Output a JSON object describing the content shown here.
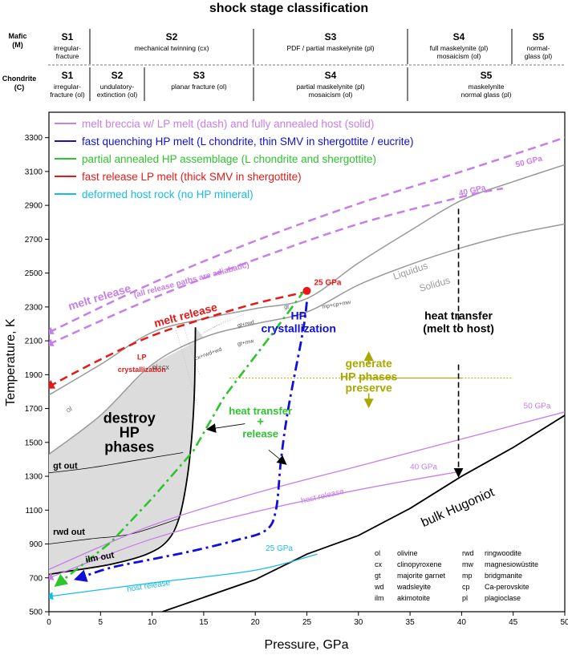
{
  "title": "shock stage classification",
  "stages": {
    "mafic": {
      "row_label_1": "Mafic",
      "row_label_2": "(M)",
      "items": [
        {
          "stage": "S1",
          "desc": [
            "irregular-",
            "fracture"
          ]
        },
        {
          "stage": "S2",
          "desc": [
            "mechanical twinning (cx)"
          ]
        },
        {
          "stage": "S3",
          "desc": [
            "PDF / partial maskelynite (pl)"
          ]
        },
        {
          "stage": "S4",
          "desc": [
            "full maskelynite (pl)",
            "mosaicism (ol)"
          ]
        },
        {
          "stage": "S5",
          "desc": [
            "normal-",
            "glass (pl)"
          ]
        }
      ]
    },
    "chondrite": {
      "row_label_1": "Chondrite",
      "row_label_2": "(C)",
      "items": [
        {
          "stage": "S1",
          "desc": [
            "irregular-",
            "fracture (ol)"
          ]
        },
        {
          "stage": "S2",
          "desc": [
            "undulatory-",
            "extinction (ol)"
          ]
        },
        {
          "stage": "S3",
          "desc": [
            "planar fracture (ol)"
          ]
        },
        {
          "stage": "S4",
          "desc": [
            "partial maskelynite (pl)",
            "mosaicism (ol)"
          ]
        },
        {
          "stage": "S5",
          "desc": [
            "maskelynite",
            "normal glass (pl)"
          ]
        }
      ]
    }
  },
  "chart_data": {
    "type": "line",
    "xlabel": "Pressure, GPa",
    "ylabel": "Temperature, K",
    "xlim": [
      0,
      50
    ],
    "ylim": [
      500,
      3450
    ],
    "x_ticks": [
      0,
      5,
      10,
      15,
      20,
      25,
      30,
      35,
      40,
      45,
      50
    ],
    "y_ticks": [
      500,
      700,
      900,
      1100,
      1300,
      1500,
      1700,
      1900,
      2100,
      2300,
      2500,
      2700,
      2900,
      3100,
      3300
    ],
    "legend": [
      {
        "label": "melt breccia w/ LP melt (dash) and fully annealed host (solid)",
        "color": "#c77ee8"
      },
      {
        "label": "fast quenching HP melt (L chondrite, thin SMV in shergottite / eucrite)",
        "color": "#1010d8"
      },
      {
        "label": "partial annealed HP assemblage (L chondrite and shergottite)",
        "color": "#2ec42e"
      },
      {
        "label": "fast release LP melt (thick SMV in shergottite)",
        "color": "#e81818"
      },
      {
        "label": "deformed host rock (no HP mineral)",
        "color": "#17bde8"
      }
    ],
    "colors": {
      "melt": "#c77ee8",
      "hp_quench": "#1010d8",
      "annealed": "#2ec42e",
      "lp_melt": "#e81818",
      "host": "#17bde8",
      "phase": "#a8a800",
      "liquidus": "#9a9a9a",
      "region": "#dcdcdc"
    },
    "curves": {
      "liquidus": [
        [
          0,
          1780
        ],
        [
          5,
          1960
        ],
        [
          10,
          2150
        ],
        [
          15,
          2230
        ],
        [
          20,
          2290
        ],
        [
          25,
          2350
        ],
        [
          30,
          2560
        ],
        [
          35,
          2750
        ],
        [
          40,
          2930
        ],
        [
          45,
          3040
        ],
        [
          50,
          3140
        ]
      ],
      "solidus": [
        [
          0,
          1430
        ],
        [
          5,
          1660
        ],
        [
          10,
          1960
        ],
        [
          15,
          2120
        ],
        [
          20,
          2200
        ],
        [
          25,
          2270
        ],
        [
          30,
          2430
        ],
        [
          35,
          2550
        ],
        [
          40,
          2650
        ],
        [
          45,
          2730
        ],
        [
          50,
          2790
        ]
      ],
      "bulk_hugoniot": [
        [
          11,
          500
        ],
        [
          20,
          690
        ],
        [
          25,
          840
        ],
        [
          30,
          950
        ],
        [
          35,
          1110
        ],
        [
          40,
          1300
        ],
        [
          45,
          1470
        ],
        [
          50,
          1660
        ]
      ],
      "destroy_boundary": [
        [
          14.2,
          2180
        ],
        [
          14.1,
          1800
        ],
        [
          13.8,
          1500
        ],
        [
          13.3,
          1250
        ],
        [
          12.6,
          1050
        ],
        [
          11.5,
          920
        ],
        [
          9.5,
          840
        ],
        [
          6,
          780
        ],
        [
          2,
          740
        ],
        [
          0,
          720
        ]
      ],
      "gt_out": [
        [
          0,
          1320
        ],
        [
          4,
          1350
        ],
        [
          8,
          1390
        ],
        [
          13,
          1440
        ]
      ],
      "rwd_out": [
        [
          0,
          900
        ],
        [
          4,
          930
        ],
        [
          8,
          960
        ],
        [
          12.6,
          1050
        ]
      ],
      "melt_release_50": [
        [
          0,
          2150
        ],
        [
          10,
          2440
        ],
        [
          20,
          2690
        ],
        [
          30,
          2910
        ],
        [
          40,
          3100
        ],
        [
          50,
          3300
        ]
      ],
      "melt_release_40": [
        [
          0,
          2080
        ],
        [
          10,
          2350
        ],
        [
          20,
          2580
        ],
        [
          30,
          2790
        ],
        [
          40,
          2950
        ],
        [
          44,
          3000
        ]
      ],
      "host_release_50": [
        [
          0,
          750
        ],
        [
          10,
          1010
        ],
        [
          20,
          1200
        ],
        [
          30,
          1360
        ],
        [
          40,
          1520
        ],
        [
          50,
          1680
        ]
      ],
      "host_release_40": [
        [
          0,
          700
        ],
        [
          10,
          930
        ],
        [
          20,
          1090
        ],
        [
          30,
          1220
        ],
        [
          40,
          1330
        ]
      ],
      "host_release_25": [
        [
          0,
          590
        ],
        [
          10,
          670
        ],
        [
          20,
          745
        ],
        [
          26,
          840
        ]
      ],
      "lp_melt": [
        [
          0,
          1830
        ],
        [
          5,
          1990
        ],
        [
          10,
          2130
        ],
        [
          15,
          2230
        ],
        [
          20,
          2320
        ],
        [
          25,
          2390
        ]
      ],
      "hp_quench": [
        [
          25,
          2330
        ],
        [
          24.6,
          2150
        ],
        [
          23.2,
          1700
        ],
        [
          22.5,
          1400
        ],
        [
          22,
          1100
        ],
        [
          21,
          980
        ],
        [
          18,
          920
        ],
        [
          14,
          860
        ],
        [
          10,
          810
        ],
        [
          6,
          760
        ],
        [
          3,
          700
        ]
      ],
      "annealed": [
        [
          24.8,
          2400
        ],
        [
          22,
          2170
        ],
        [
          17,
          1770
        ],
        [
          14,
          1450
        ],
        [
          10,
          1170
        ],
        [
          6,
          910
        ],
        [
          1,
          670
        ]
      ],
      "generate_preserve_line": [
        [
          17.5,
          1880
        ],
        [
          45,
          1880
        ]
      ],
      "heat_transfer_line": [
        [
          39.7,
          2880
        ],
        [
          39.7,
          1320
        ]
      ],
      "melt_point": [
        [
          25,
          2395
        ]
      ]
    },
    "labels": {
      "melt_release": "melt release",
      "adiabatic": "(all release paths are adiabatic)",
      "lp_melt_release": "melt release",
      "p25": "25 GPa",
      "p40": "40 GPa",
      "p50": "50 GPa",
      "host_50": "50 GPa",
      "host_40": "40 GPa",
      "host_25": "25 GPa",
      "host_release": "host release",
      "host_release_2": "host release",
      "liquidus": "Liquidus",
      "solidus": "Solidus",
      "hp_cryst_1": "HP",
      "hp_cryst_2": "crystallization",
      "lp_cryst_1": "LP",
      "lp_cryst_2": "crystallization",
      "heat_transfer_1": "heat transfer",
      "heat_transfer_2": "(melt to host)",
      "generate": "generate",
      "hp_phases": "HP phases",
      "preserve": "preserve",
      "ht_release_1": "heat transfer",
      "ht_release_2": "+",
      "ht_release_3": "release",
      "destroy_1": "destroy",
      "destroy_2": "HP",
      "destroy_3": "phases",
      "gt_out": "gt out",
      "rwd_out": "rwd out",
      "ilm_out": "ilm out",
      "bulk_hugoniot": "bulk Hugoniot",
      "ol": "ol",
      "ol_cx": "ol+cx",
      "cx_rwd_wd": "cx+rwd+wd",
      "gt_rwd": "gt+rwd",
      "gt_mw": "gt+mw",
      "gt": "gt",
      "mp_cp_mw": "mp+cp+mw"
    },
    "abbreviations": [
      {
        "abbr": "ol",
        "name": "olivine"
      },
      {
        "abbr": "cx",
        "name": "clinopyroxene"
      },
      {
        "abbr": "gt",
        "name": "majorite garnet"
      },
      {
        "abbr": "wd",
        "name": "wadsleyite"
      },
      {
        "abbr": "ilm",
        "name": "akimotoite"
      },
      {
        "abbr": "rwd",
        "name": "ringwoodite"
      },
      {
        "abbr": "mw",
        "name": "magnesiowüstite"
      },
      {
        "abbr": "mp",
        "name": "bridgmanite"
      },
      {
        "abbr": "cp",
        "name": "Ca-perovskite"
      },
      {
        "abbr": "pl",
        "name": "plagioclase"
      }
    ]
  }
}
